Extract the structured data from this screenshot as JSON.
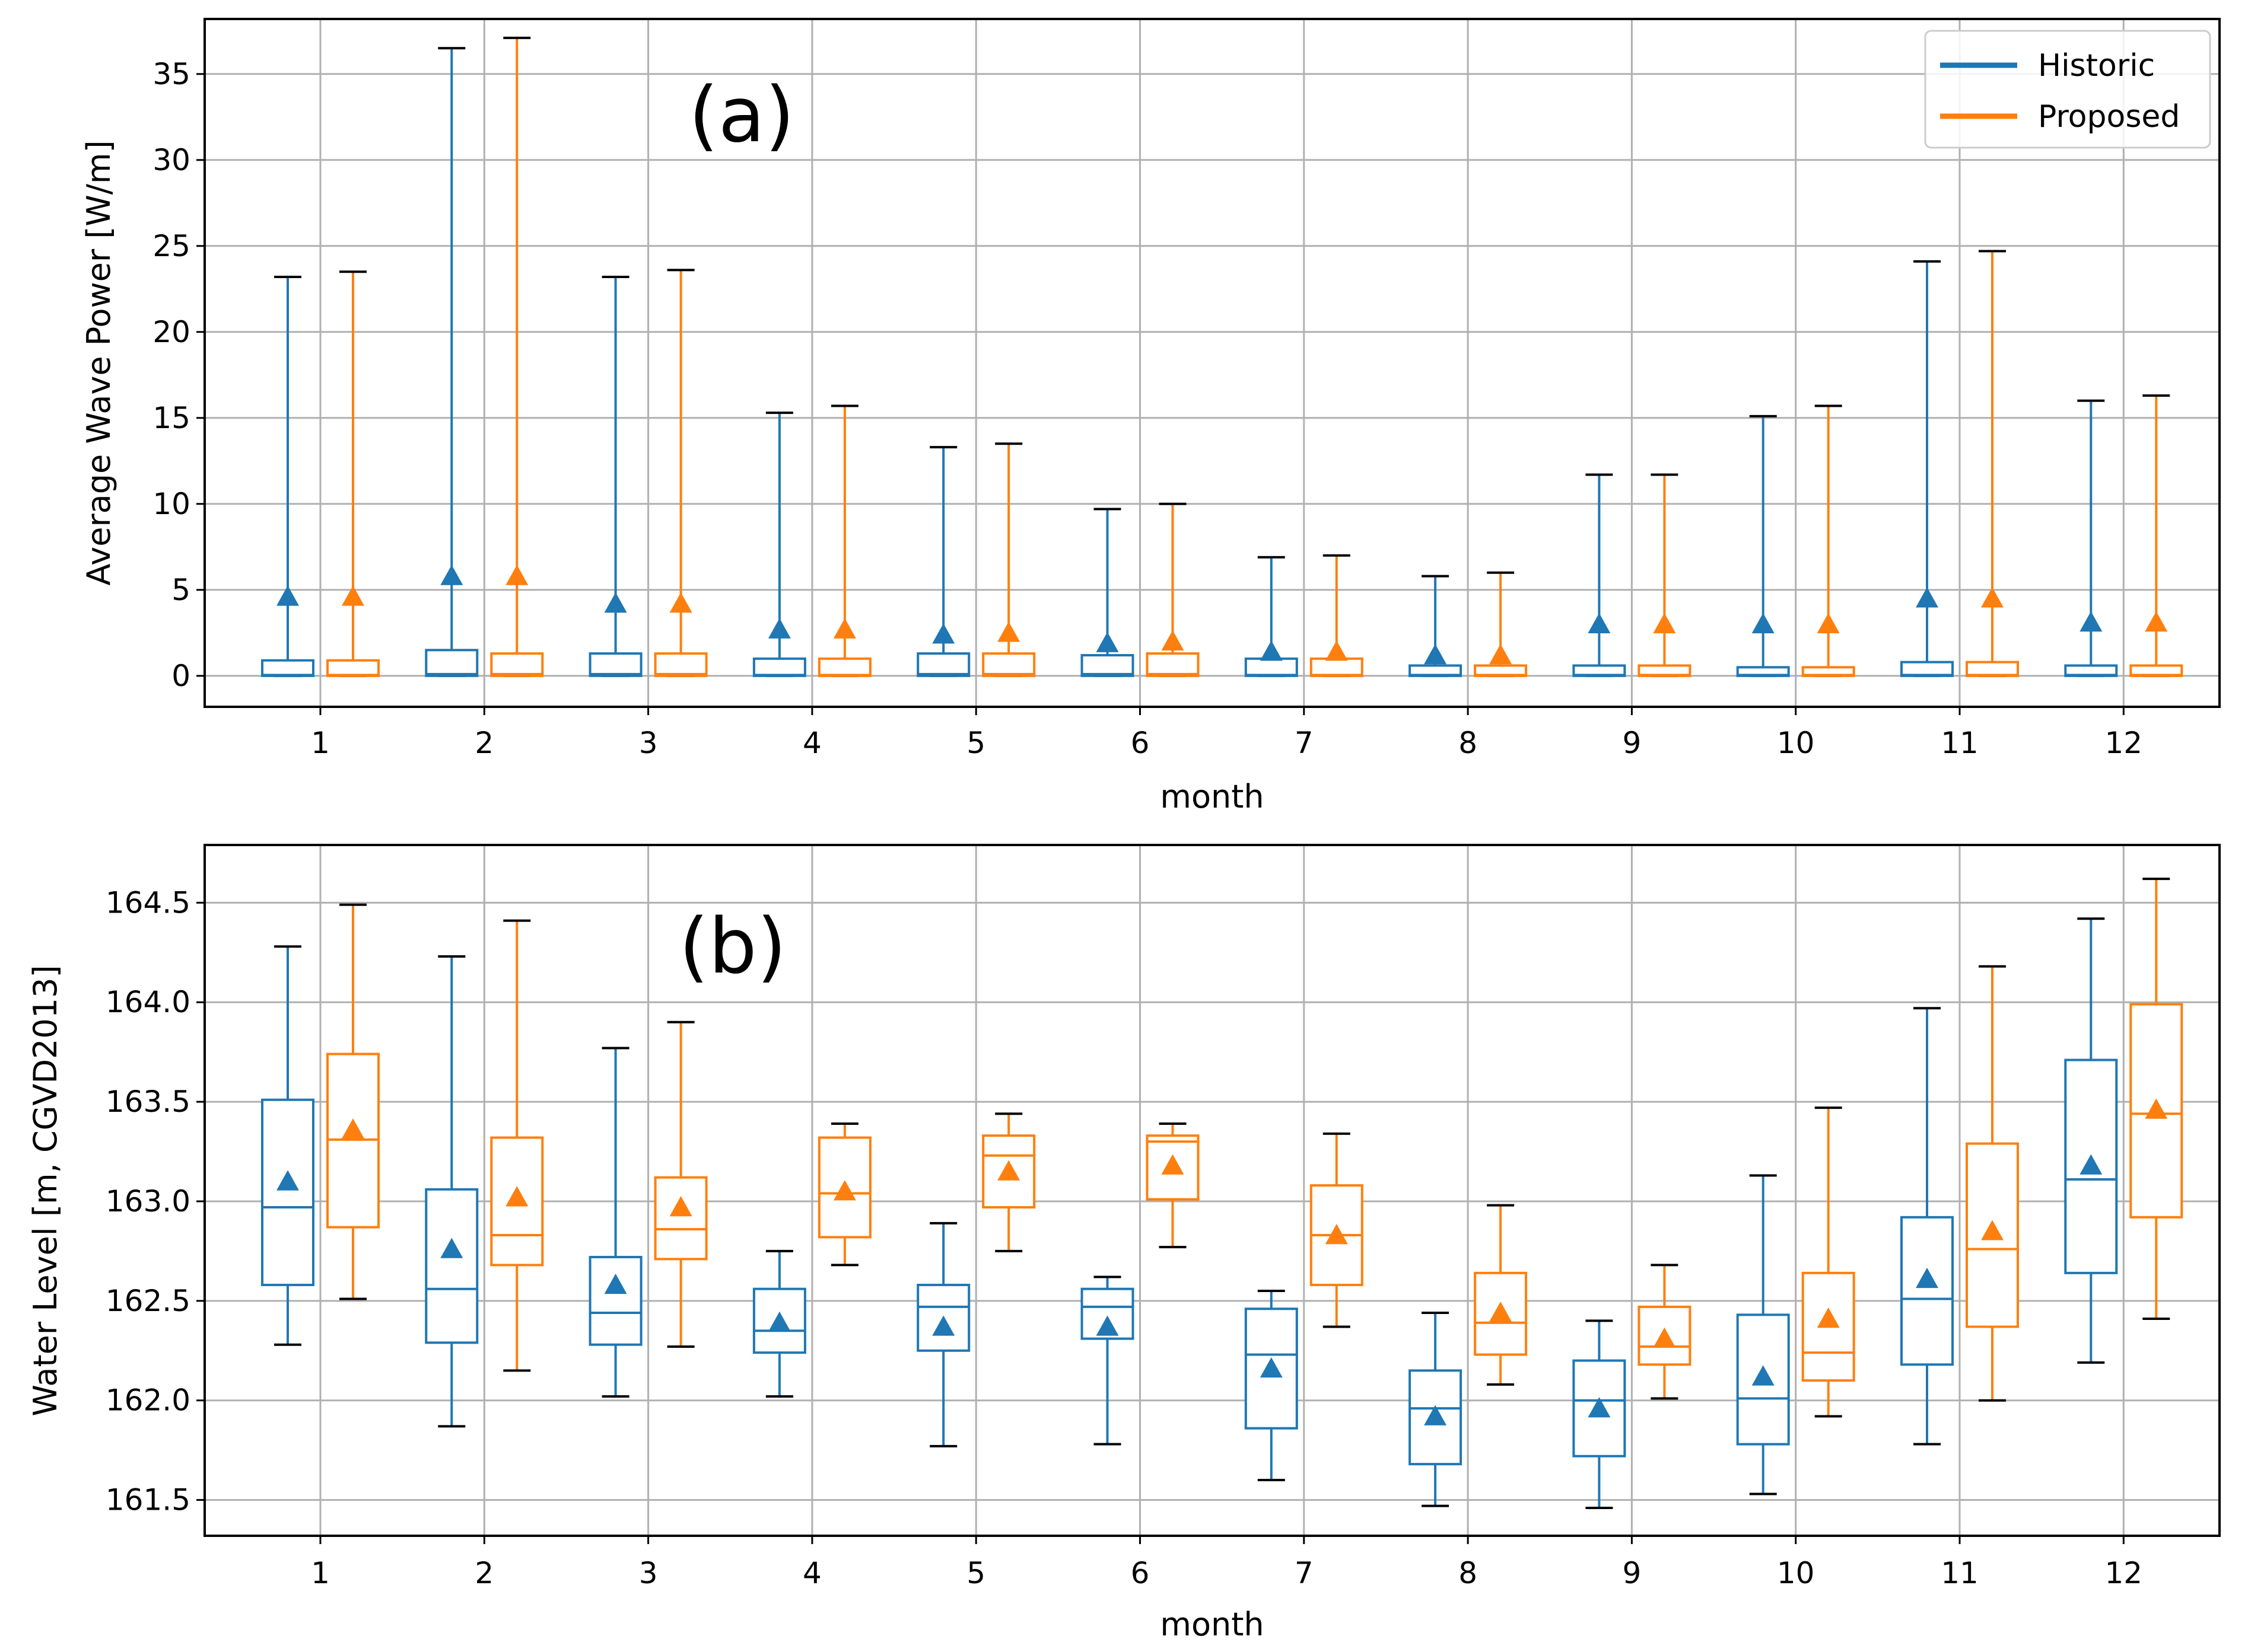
{
  "colors": {
    "historic": "#1f77b4",
    "proposed": "#ff7f0e",
    "grid": "#b0b0b0",
    "axes": "#000000"
  },
  "chart_data": [
    {
      "type": "box",
      "panel_label": "(a)",
      "xlabel": "month",
      "ylabel": "Average Wave Power [W/m]",
      "ylim": [
        -1.8,
        38.2
      ],
      "yticks": [
        0,
        5,
        10,
        15,
        20,
        25,
        30,
        35
      ],
      "ytick_labels": [
        "0",
        "5",
        "10",
        "15",
        "20",
        "25",
        "30",
        "35"
      ],
      "categories": [
        "1",
        "2",
        "3",
        "4",
        "5",
        "6",
        "7",
        "8",
        "9",
        "10",
        "11",
        "12"
      ],
      "legend": {
        "position": "top-right",
        "entries": [
          "Historic",
          "Proposed"
        ]
      },
      "series": [
        {
          "name": "Historic",
          "min": [
            0,
            0,
            0,
            0,
            0,
            0,
            0,
            0,
            0,
            0,
            0,
            0
          ],
          "q1": [
            0,
            0,
            0,
            0,
            0,
            0,
            0,
            0,
            0,
            0,
            0,
            0
          ],
          "median": [
            0.05,
            0.1,
            0.1,
            0.05,
            0.1,
            0.1,
            0.05,
            0.05,
            0.05,
            0.05,
            0.05,
            0.05
          ],
          "q3": [
            0.9,
            1.5,
            1.3,
            1.0,
            1.3,
            1.2,
            1.0,
            0.6,
            0.6,
            0.5,
            0.8,
            0.6
          ],
          "max": [
            23.2,
            36.5,
            23.2,
            15.3,
            13.3,
            9.7,
            6.9,
            5.8,
            11.7,
            15.1,
            24.1,
            16.0
          ],
          "mean": [
            4.6,
            5.8,
            4.2,
            2.7,
            2.4,
            1.9,
            1.4,
            1.2,
            3.0,
            3.0,
            4.5,
            3.1
          ]
        },
        {
          "name": "Proposed",
          "min": [
            0,
            0,
            0,
            0,
            0,
            0,
            0,
            0,
            0,
            0,
            0,
            0
          ],
          "q1": [
            0,
            0,
            0,
            0,
            0,
            0,
            0,
            0,
            0,
            0,
            0,
            0
          ],
          "median": [
            0.05,
            0.1,
            0.1,
            0.05,
            0.1,
            0.1,
            0.05,
            0.05,
            0.05,
            0.05,
            0.05,
            0.05
          ],
          "q3": [
            0.9,
            1.3,
            1.3,
            1.0,
            1.3,
            1.3,
            1.0,
            0.6,
            0.6,
            0.5,
            0.8,
            0.6
          ],
          "max": [
            23.5,
            37.1,
            23.6,
            15.7,
            13.5,
            10.0,
            7.0,
            6.0,
            11.7,
            15.7,
            24.7,
            16.3
          ],
          "mean": [
            4.6,
            5.8,
            4.2,
            2.7,
            2.5,
            2.0,
            1.4,
            1.2,
            3.0,
            3.0,
            4.5,
            3.1
          ]
        }
      ]
    },
    {
      "type": "box",
      "panel_label": "(b)",
      "xlabel": "month",
      "ylabel": "Water Level [m, CGVD2013]",
      "ylim": [
        161.32,
        164.79
      ],
      "yticks": [
        161.5,
        162.0,
        162.5,
        163.0,
        163.5,
        164.0,
        164.5
      ],
      "ytick_labels": [
        "161.5",
        "162.0",
        "162.5",
        "163.0",
        "163.5",
        "164.0",
        "164.5"
      ],
      "categories": [
        "1",
        "2",
        "3",
        "4",
        "5",
        "6",
        "7",
        "8",
        "9",
        "10",
        "11",
        "12"
      ],
      "series": [
        {
          "name": "Historic",
          "min": [
            162.28,
            161.87,
            162.02,
            162.02,
            161.77,
            161.78,
            161.6,
            161.47,
            161.46,
            161.53,
            161.78,
            162.19
          ],
          "q1": [
            162.58,
            162.29,
            162.28,
            162.24,
            162.25,
            162.31,
            161.86,
            161.68,
            161.72,
            161.78,
            162.18,
            162.64
          ],
          "median": [
            162.97,
            162.56,
            162.44,
            162.35,
            162.47,
            162.47,
            162.23,
            161.96,
            162.0,
            162.01,
            162.51,
            163.11
          ],
          "q3": [
            163.51,
            163.06,
            162.72,
            162.56,
            162.58,
            162.56,
            162.46,
            162.15,
            162.2,
            162.43,
            162.92,
            163.71
          ],
          "max": [
            164.28,
            164.23,
            163.77,
            162.75,
            162.89,
            162.62,
            162.55,
            162.44,
            162.4,
            163.13,
            163.97,
            164.42
          ],
          "mean": [
            163.1,
            162.76,
            162.58,
            162.39,
            162.37,
            162.37,
            162.16,
            161.92,
            161.96,
            162.12,
            162.61,
            163.18
          ]
        },
        {
          "name": "Proposed",
          "min": [
            162.51,
            162.15,
            162.27,
            162.68,
            162.75,
            162.77,
            162.37,
            162.08,
            162.01,
            161.92,
            162.0,
            162.41
          ],
          "q1": [
            162.87,
            162.68,
            162.71,
            162.82,
            162.97,
            163.01,
            162.58,
            162.23,
            162.18,
            162.1,
            162.37,
            162.92
          ],
          "median": [
            163.31,
            162.83,
            162.86,
            163.04,
            163.23,
            163.3,
            162.83,
            162.39,
            162.27,
            162.24,
            162.76,
            163.44
          ],
          "q3": [
            163.74,
            163.32,
            163.12,
            163.32,
            163.33,
            163.33,
            163.08,
            162.64,
            162.47,
            162.64,
            163.29,
            163.99
          ],
          "max": [
            164.49,
            164.41,
            163.9,
            163.39,
            163.44,
            163.39,
            163.34,
            162.98,
            162.68,
            163.47,
            164.18,
            164.62
          ],
          "mean": [
            163.36,
            163.02,
            162.97,
            163.05,
            163.15,
            163.18,
            162.83,
            162.44,
            162.31,
            162.41,
            162.85,
            163.46
          ]
        }
      ]
    }
  ]
}
